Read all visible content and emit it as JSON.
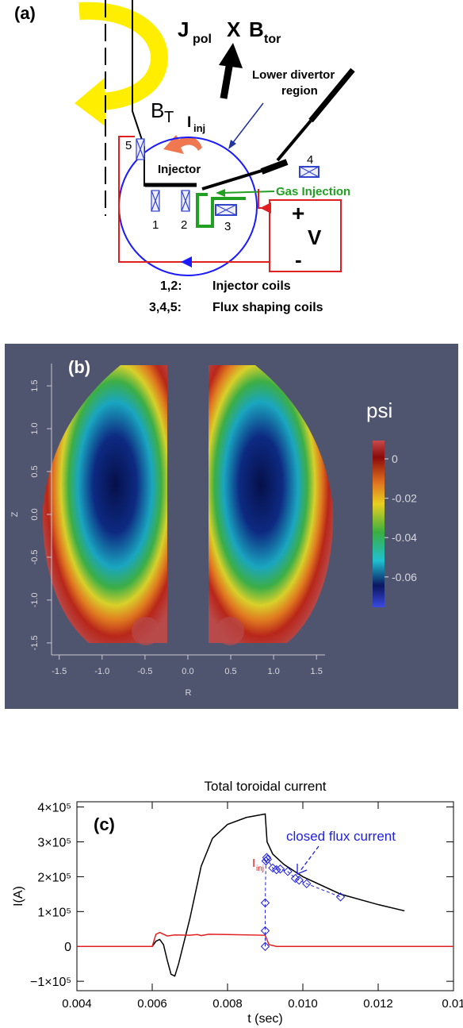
{
  "diagram": {
    "label": "(a)",
    "force": {
      "j": "J",
      "j_sub": "pol",
      "x": "X",
      "b": "B",
      "b_sub": "tor"
    },
    "divertor": [
      "Lower divertor",
      "region"
    ],
    "field": {
      "b": "B",
      "b_sub": "T"
    },
    "current": {
      "i": "I",
      "i_sub": "inj"
    },
    "injector": "Injector",
    "gas": "Gas Injection",
    "coils": [
      "1",
      "2",
      "3",
      "4",
      "5"
    ],
    "supply": {
      "plus": "+",
      "v": "V",
      "minus": "-"
    },
    "legend": [
      [
        "1,2:",
        "Injector coils"
      ],
      [
        "3,4,5:",
        "Flux shaping coils"
      ]
    ]
  },
  "chart_data": [
    {
      "type": "heatmap",
      "label": "(b)",
      "colorbar_title": "psi",
      "xlabel": "R",
      "ylabel": "Z",
      "xlim": [
        -1.59,
        1.6
      ],
      "ylim": [
        -1.64,
        1.76
      ],
      "xticks": [
        -1.5,
        {
          "value": -1,
          "label": "-1.0"
        },
        -0.5,
        {
          "value": 0,
          "label": "0.0"
        },
        0.5,
        {
          "value": 1,
          "label": "1.0"
        },
        1.5
      ],
      "yticks": [
        -1.5,
        {
          "value": -1,
          "label": "-1.0"
        },
        -0.5,
        {
          "value": 0,
          "label": "0.0"
        },
        0.5,
        {
          "value": 1,
          "label": "1.0"
        },
        1.5
      ],
      "colorbar_lim": [
        -0.0754,
        0.0093
      ],
      "colorbar_ticks": [
        0,
        -0.02,
        -0.04,
        -0.06
      ]
    },
    {
      "type": "line",
      "title": "Total toroidal current",
      "label": "(c)",
      "xlabel": "t (sec)",
      "ylabel": "I(A)",
      "xlim": [
        0.004,
        0.014
      ],
      "ylim": [
        -127000,
        415000
      ],
      "xticks": [
        0.004,
        0.006,
        0.008,
        {
          "value": 0.01,
          "label": "0.010"
        },
        0.012,
        {
          "value": 0.014,
          "label": "0.01"
        }
      ],
      "yticks": [
        {
          "value": -100000,
          "label": "−1×10⁵"
        },
        0,
        {
          "value": 100000,
          "label": "1×10⁵"
        },
        {
          "value": 200000,
          "label": "2×10⁵"
        },
        {
          "value": 300000,
          "label": "3×10⁵"
        },
        {
          "value": 400000,
          "label": "4×10⁵"
        }
      ],
      "series": [
        {
          "color": "#000000",
          "x": [
            0.004,
            0.006,
            0.0061,
            0.0062,
            0.0063,
            0.0064,
            0.0065,
            0.0066,
            0.0067,
            0.007,
            0.0073,
            0.0076,
            0.008,
            0.0085,
            0.009,
            0.00905,
            0.0092,
            0.0095,
            0.01,
            0.011,
            0.012,
            0.0127
          ],
          "values": [
            0,
            0,
            15000,
            20000,
            5000,
            -40000,
            -80000,
            -85000,
            -50000,
            80000,
            230000,
            310000,
            350000,
            370000,
            380000,
            300000,
            265000,
            235000,
            200000,
            150000,
            120000,
            102000
          ]
        },
        {
          "color": "#e02020",
          "x": [
            0.004,
            0.006,
            0.0061,
            0.0062,
            0.0064,
            0.0066,
            0.007,
            0.0072,
            0.0073,
            0.0075,
            0.008,
            0.009,
            0.0091,
            0.0093,
            0.014
          ],
          "values": [
            0,
            0,
            35000,
            40000,
            30000,
            33000,
            32000,
            34000,
            31000,
            35000,
            34000,
            32000,
            5000,
            0,
            0
          ]
        },
        {
          "color": "#2020e0",
          "marker": "diamond",
          "dashed": true,
          "x": [
            0.009,
            0.009,
            0.009,
            0.00902,
            0.00904,
            0.00906,
            0.0092,
            0.0093,
            0.0094,
            0.0096,
            0.0098,
            0.0099,
            0.0101,
            0.011
          ],
          "values": [
            0,
            45000,
            125000,
            245000,
            255000,
            250000,
            225000,
            220000,
            222000,
            215000,
            195000,
            190000,
            180000,
            142000
          ]
        }
      ],
      "annotations": {
        "closed": "closed flux current",
        "inj": "I",
        "inj_sub": "inj"
      }
    }
  ]
}
